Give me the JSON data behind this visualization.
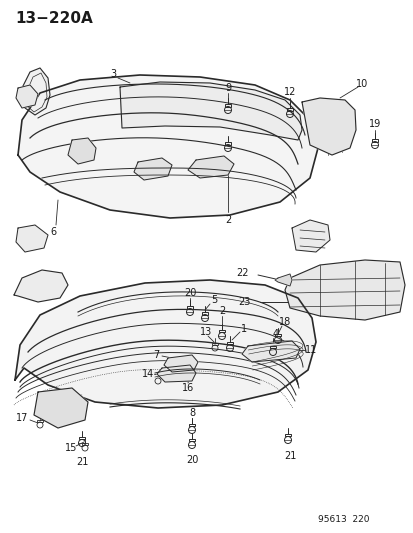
{
  "title": "13−220A",
  "footer": "95613  220",
  "bg": "#ffffff",
  "lc": "#2a2a2a",
  "fig_w": 4.14,
  "fig_h": 5.33,
  "dpi": 100
}
